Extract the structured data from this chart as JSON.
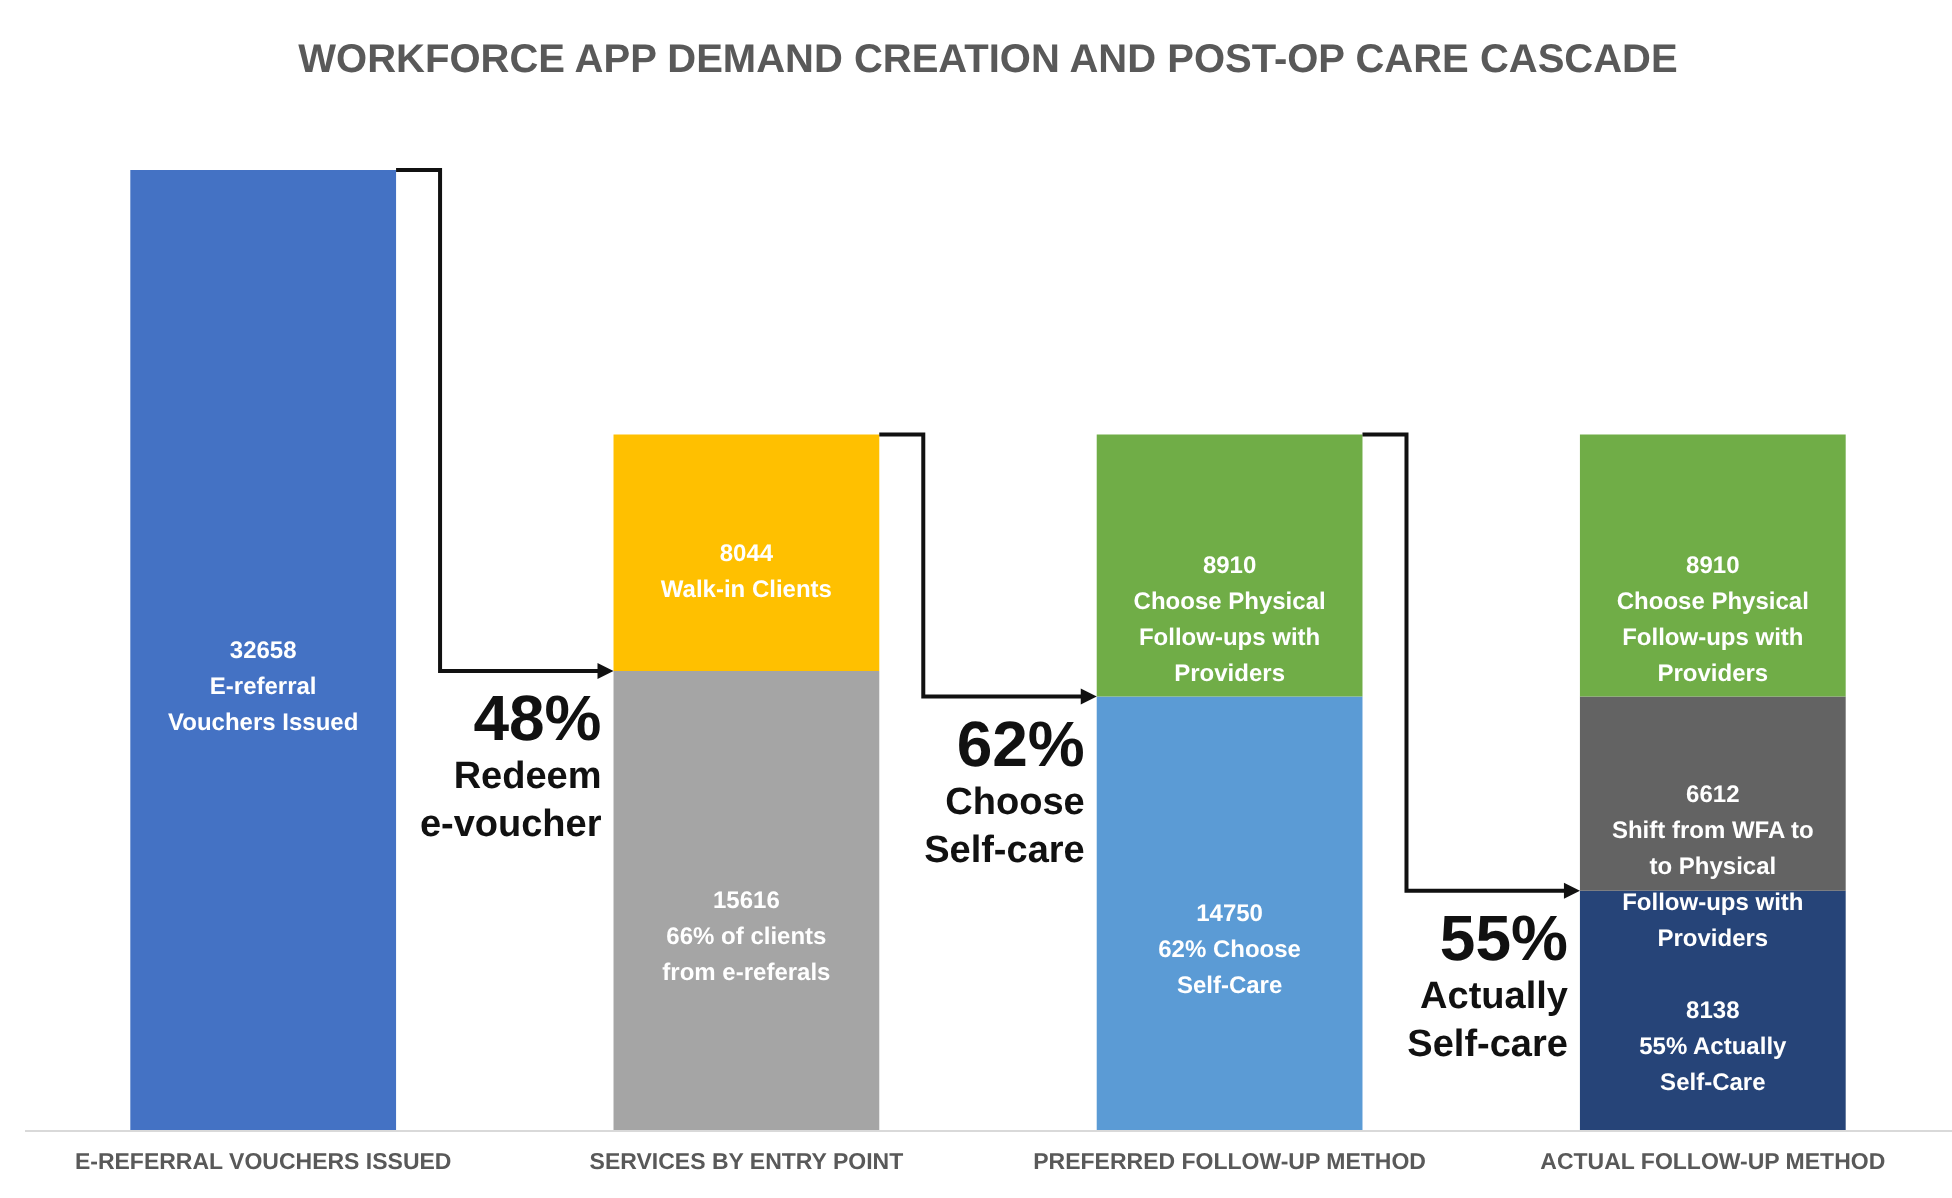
{
  "chart_data": {
    "type": "bar",
    "title": "WORKFORCE APP DEMAND CREATION AND POST-OP CARE CASCADE",
    "categories": [
      "E-REFERRAL VOUCHERS ISSUED",
      "SERVICES BY ENTRY POINT",
      "PREFERRED FOLLOW-UP METHOD",
      "ACTUAL FOLLOW-UP METHOD"
    ],
    "stacked": true,
    "data_labels": true,
    "series": [
      {
        "name": "E-referral Vouchers Issued",
        "color": "#4472c4",
        "values": [
          32658,
          null,
          null,
          null
        ]
      },
      {
        "name": "66% of clients from e-referals",
        "color": "#a5a5a5",
        "values": [
          null,
          15616,
          null,
          null
        ]
      },
      {
        "name": "62% Choose Self-Care",
        "color": "#5b9bd5",
        "values": [
          null,
          null,
          14750,
          null
        ]
      },
      {
        "name": "55% Actually Self-Care",
        "color": "#264478",
        "values": [
          null,
          null,
          null,
          8138
        ]
      },
      {
        "name": "Shift from WFA to to Physical Follow-ups with Providers",
        "color": "#636363",
        "values": [
          null,
          null,
          null,
          6612
        ]
      },
      {
        "name": "Walk-in Clients",
        "color": "#ffc000",
        "values": [
          null,
          8044,
          null,
          null
        ]
      },
      {
        "name": "Choose Physical Follow-ups with Providers",
        "color": "#70ad47",
        "values": [
          null,
          null,
          8910,
          8910
        ]
      }
    ],
    "annotations": [
      "48% Redeem e-voucher",
      "62% Choose Self-care",
      "55% Actually Self-care"
    ]
  }
}
